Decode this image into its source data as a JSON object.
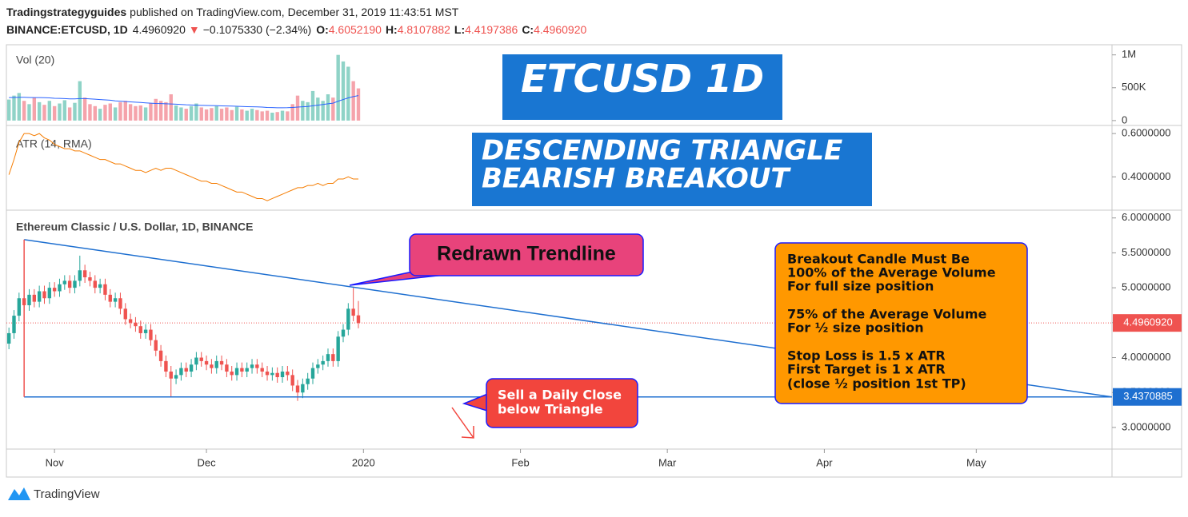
{
  "header": {
    "author": "Tradingstrategyguides",
    "published": "published on TradingView.com, December 31, 2019 11:43:51 MST",
    "symbol": "BINANCE:ETCUSD, 1D",
    "last": "4.4960920",
    "arrow": "▼",
    "change": "−0.1075330 (−2.34%)",
    "open_label": "O:",
    "open": "4.6052190",
    "high_label": "H:",
    "high": "4.8107882",
    "low_label": "L:",
    "low": "4.4197386",
    "close_label": "C:",
    "close": "4.4960920"
  },
  "annotations": {
    "title_box": "ETCUSD 1D",
    "pattern": [
      "DESCENDING TRIANGLE",
      "BEARISH BREAKOUT"
    ],
    "trendline_note": "Redrawn Trendline",
    "rules": [
      "Breakout Candle Must Be",
      "100% of the Average Volume",
      "For full size position",
      "75% of the Average Volume",
      "For ½ size position",
      "Stop Loss is 1.5 x ATR",
      "First Target is 1 x ATR",
      "(close ½ position 1st TP)"
    ],
    "sell_note": [
      "Sell a Daily Close",
      "below Triangle"
    ]
  },
  "footer": {
    "brand": "TradingView"
  },
  "chart_data": [
    {
      "type": "bar",
      "title": "Vol (20)",
      "up_color": "#8fd3c7",
      "down_color": "#f5a3ab",
      "values": [
        320000,
        380000,
        420000,
        300000,
        250000,
        350000,
        280000,
        240000,
        300000,
        220000,
        260000,
        310000,
        200000,
        270000,
        600000,
        350000,
        250000,
        220000,
        180000,
        240000,
        260000,
        200000,
        280000,
        300000,
        250000,
        220000,
        230000,
        200000,
        260000,
        330000,
        300000,
        280000,
        400000,
        230000,
        200000,
        180000,
        220000,
        260000,
        200000,
        170000,
        190000,
        220000,
        180000,
        200000,
        160000,
        210000,
        170000,
        150000,
        180000,
        160000,
        140000,
        150000,
        120000,
        130000,
        150000,
        140000,
        250000,
        380000,
        300000,
        280000,
        450000,
        350000,
        300000,
        400000,
        350000,
        1000000,
        900000,
        820000,
        600000,
        490000
      ],
      "ma": {
        "color": "#2962ff",
        "values": [
          350000,
          352000,
          355000,
          355000,
          352000,
          350000,
          350000,
          348000,
          345000,
          340000,
          338000,
          335000,
          330000,
          330000,
          335000,
          335000,
          330000,
          325000,
          320000,
          315000,
          310000,
          300000,
          295000,
          290000,
          285000,
          280000,
          275000,
          270000,
          265000,
          260000,
          258000,
          255000,
          252000,
          250000,
          245000,
          240000,
          238000,
          235000,
          232000,
          230000,
          228000,
          226000,
          224000,
          222000,
          220000,
          218000,
          215000,
          212000,
          210000,
          208000,
          205000,
          200000,
          198000,
          195000,
          195000,
          196000,
          200000,
          205000,
          210000,
          215000,
          225000,
          235000,
          245000,
          255000,
          265000,
          295000,
          320000,
          345000,
          365000,
          380000
        ]
      },
      "ylim": [
        -50000,
        1130000
      ],
      "yticks": [
        0,
        {
          "value": 500000,
          "label": "500K"
        },
        {
          "value": 1000000,
          "label": "1M"
        }
      ]
    },
    {
      "type": "line",
      "title": "ATR (14, RMA)",
      "color": "#f57c00",
      "values": [
        0.41,
        0.48,
        0.56,
        0.6,
        0.6,
        0.59,
        0.6,
        0.58,
        0.57,
        0.55,
        0.54,
        0.53,
        0.53,
        0.52,
        0.52,
        0.51,
        0.5,
        0.49,
        0.48,
        0.48,
        0.47,
        0.46,
        0.46,
        0.45,
        0.44,
        0.43,
        0.43,
        0.42,
        0.43,
        0.44,
        0.43,
        0.44,
        0.44,
        0.43,
        0.42,
        0.41,
        0.4,
        0.39,
        0.38,
        0.38,
        0.37,
        0.37,
        0.36,
        0.35,
        0.34,
        0.33,
        0.33,
        0.32,
        0.31,
        0.3,
        0.3,
        0.29,
        0.3,
        0.31,
        0.32,
        0.33,
        0.34,
        0.35,
        0.35,
        0.36,
        0.36,
        0.37,
        0.36,
        0.37,
        0.37,
        0.39,
        0.39,
        0.4,
        0.39,
        0.39
      ],
      "ylim": [
        0.25,
        0.63
      ],
      "yticks": [
        {
          "value": 0.4,
          "label": "0.4000000"
        },
        {
          "value": 0.6,
          "label": "0.6000000"
        }
      ]
    },
    {
      "type": "candlestick",
      "title": "Ethereum Classic / U.S. Dollar, 1D, BINANCE",
      "up_color": "#26a69a",
      "down_color": "#ef5350",
      "open": [
        4.2,
        4.35,
        4.6,
        4.85,
        4.75,
        4.9,
        4.8,
        4.95,
        4.85,
        5.0,
        4.95,
        5.05,
        5.1,
        5.0,
        5.1,
        5.25,
        5.15,
        5.1,
        5.0,
        5.05,
        4.9,
        4.8,
        4.85,
        4.7,
        4.55,
        4.5,
        4.45,
        4.35,
        4.4,
        4.25,
        4.1,
        3.95,
        3.8,
        3.7,
        3.75,
        3.85,
        3.8,
        3.9,
        4.0,
        3.95,
        3.9,
        3.85,
        3.95,
        3.9,
        3.8,
        3.75,
        3.85,
        3.8,
        3.85,
        3.9,
        3.85,
        3.8,
        3.75,
        3.78,
        3.72,
        3.8,
        3.75,
        3.6,
        3.5,
        3.62,
        3.7,
        3.85,
        3.9,
        3.95,
        4.05,
        3.95,
        4.3,
        4.4,
        4.7,
        4.605219
      ],
      "high": [
        4.43,
        4.68,
        4.93,
        4.93,
        4.98,
        4.98,
        5.03,
        5.03,
        5.08,
        5.08,
        5.13,
        5.18,
        5.18,
        5.18,
        5.46,
        5.33,
        5.23,
        5.18,
        5.13,
        5.13,
        4.98,
        4.93,
        4.93,
        4.78,
        4.63,
        4.58,
        4.53,
        4.48,
        4.48,
        4.33,
        4.18,
        4.03,
        3.88,
        3.83,
        3.93,
        3.93,
        3.98,
        4.08,
        4.08,
        4.03,
        3.98,
        4.03,
        4.03,
        3.98,
        3.88,
        3.93,
        3.93,
        3.93,
        3.98,
        3.98,
        3.93,
        3.88,
        3.86,
        3.86,
        3.88,
        3.88,
        3.83,
        3.68,
        3.7,
        3.78,
        3.93,
        3.98,
        4.03,
        4.13,
        4.13,
        4.38,
        4.48,
        4.78,
        5.0,
        4.8107882
      ],
      "low": [
        4.12,
        4.27,
        4.52,
        4.67,
        4.67,
        4.72,
        4.72,
        4.77,
        4.77,
        4.87,
        4.87,
        4.97,
        4.92,
        4.92,
        5.02,
        5.07,
        5.02,
        4.92,
        4.92,
        4.82,
        4.72,
        4.72,
        4.62,
        4.47,
        4.42,
        4.37,
        4.27,
        4.27,
        4.17,
        4.02,
        3.87,
        3.72,
        3.44,
        3.62,
        3.67,
        3.72,
        3.72,
        3.82,
        3.87,
        3.82,
        3.77,
        3.77,
        3.82,
        3.72,
        3.67,
        3.67,
        3.72,
        3.72,
        3.77,
        3.77,
        3.72,
        3.67,
        3.67,
        3.64,
        3.64,
        3.67,
        3.52,
        3.38,
        3.42,
        3.54,
        3.62,
        3.77,
        3.82,
        3.87,
        3.87,
        3.87,
        4.22,
        4.32,
        4.52,
        4.4197386
      ],
      "close": [
        4.35,
        4.6,
        4.85,
        4.75,
        4.9,
        4.8,
        4.95,
        4.85,
        5.0,
        4.95,
        5.05,
        5.1,
        5.0,
        5.1,
        5.25,
        5.15,
        5.1,
        5.0,
        5.05,
        4.9,
        4.8,
        4.85,
        4.7,
        4.55,
        4.5,
        4.45,
        4.35,
        4.4,
        4.25,
        4.1,
        3.95,
        3.8,
        3.7,
        3.75,
        3.85,
        3.8,
        3.9,
        4.0,
        3.95,
        3.9,
        3.85,
        3.95,
        3.9,
        3.8,
        3.75,
        3.85,
        3.8,
        3.85,
        3.9,
        3.85,
        3.8,
        3.75,
        3.78,
        3.72,
        3.8,
        3.75,
        3.6,
        3.5,
        3.62,
        3.7,
        3.85,
        3.9,
        3.95,
        4.05,
        3.95,
        4.3,
        4.4,
        4.7,
        4.6,
        4.496092
      ],
      "ylim": [
        2.69,
        6.1
      ],
      "yticks": [
        {
          "value": 3,
          "label": "3.0000000"
        },
        {
          "value": 3.5,
          "label": "3.5000000"
        },
        {
          "value": 4,
          "label": "4.0000000"
        },
        {
          "value": 4.5,
          "label": "4.5000000"
        },
        {
          "value": 5,
          "label": "5.0000000"
        },
        {
          "value": 5.5,
          "label": "5.5000000"
        },
        {
          "value": 6,
          "label": "6.0000000"
        }
      ],
      "xlim": [
        -0.5,
        217.8
      ],
      "xticks": [
        {
          "value": 9,
          "label": "Nov"
        },
        {
          "value": 39,
          "label": "Dec"
        },
        {
          "value": 70,
          "label": "2020"
        },
        {
          "value": 101,
          "label": "Feb"
        },
        {
          "value": 130,
          "label": "Mar"
        },
        {
          "value": 161,
          "label": "Apr"
        },
        {
          "value": 191,
          "label": "May"
        }
      ],
      "last_price": {
        "value": 4.496092,
        "label": "4.4960920",
        "color": "#ef5350"
      },
      "support_tag": {
        "value": 3.4370885,
        "label": "3.4370885",
        "color": "#1e6fd0"
      },
      "trendlines": [
        {
          "x": [
            3,
            217.8
          ],
          "y": [
            5.69,
            3.4370885
          ],
          "color": "#1e6fd0"
        },
        {
          "x": [
            3,
            217.8
          ],
          "y": [
            3.4370885,
            3.4370885
          ],
          "color": "#1e6fd0"
        }
      ]
    }
  ]
}
